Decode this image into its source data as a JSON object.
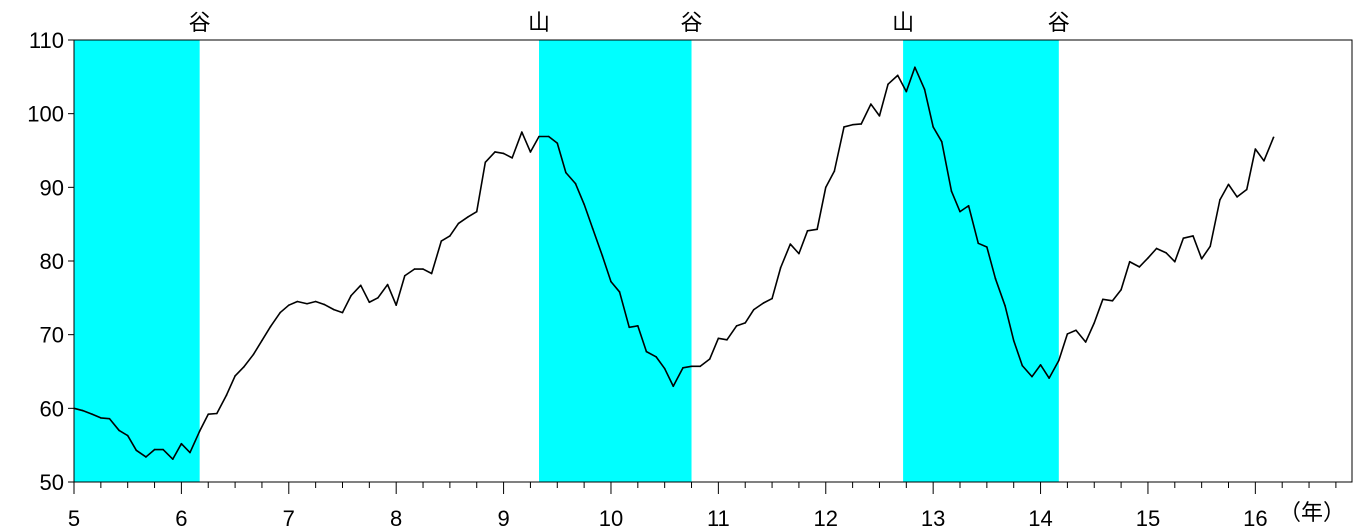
{
  "chart_data": {
    "type": "line",
    "title": "",
    "xlabel": "（年）",
    "ylabel": "",
    "ylim": [
      50,
      110
    ],
    "xlim": [
      5,
      16.9
    ],
    "yticks": [
      50,
      60,
      70,
      80,
      90,
      100,
      110
    ],
    "xticks": [
      5,
      6,
      7,
      8,
      9,
      10,
      11,
      12,
      13,
      14,
      15,
      16
    ],
    "grid": false,
    "colors": {
      "shade": "#00ffff",
      "line": "#000000",
      "axis": "#000000"
    },
    "shaded_periods": [
      {
        "start": 5.0,
        "end": 6.17
      },
      {
        "start": 9.33,
        "end": 10.75
      },
      {
        "start": 12.72,
        "end": 14.17
      }
    ],
    "phase_labels": [
      {
        "label": "谷",
        "x": 6.17
      },
      {
        "label": "山",
        "x": 9.33
      },
      {
        "label": "谷",
        "x": 10.75
      },
      {
        "label": "山",
        "x": 12.72
      },
      {
        "label": "谷",
        "x": 14.17
      }
    ],
    "series": [
      {
        "x": [
          5.0,
          5.08,
          5.17,
          5.25,
          5.33,
          5.42,
          5.5,
          5.58,
          5.67,
          5.75,
          5.83,
          5.92,
          6.0,
          6.08,
          6.17,
          6.25,
          6.33,
          6.42,
          6.5,
          6.58,
          6.67,
          6.75,
          6.83,
          6.92,
          7.0,
          7.08,
          7.17,
          7.25,
          7.33,
          7.42,
          7.5,
          7.58,
          7.67,
          7.75,
          7.83,
          7.92,
          8.0,
          8.08,
          8.17,
          8.25,
          8.33,
          8.42,
          8.5,
          8.58,
          8.67,
          8.75,
          8.83,
          8.92,
          9.0,
          9.08,
          9.17,
          9.25,
          9.33,
          9.42,
          9.5,
          9.58,
          9.67,
          9.75,
          9.83,
          9.92,
          10.0,
          10.08,
          10.17,
          10.25,
          10.33,
          10.42,
          10.5,
          10.58,
          10.67,
          10.75,
          10.83,
          10.92,
          11.0,
          11.08,
          11.17,
          11.25,
          11.33,
          11.42,
          11.5,
          11.58,
          11.67,
          11.75,
          11.83,
          11.92,
          12.0,
          12.08,
          12.17,
          12.25,
          12.33,
          12.42,
          12.5,
          12.58,
          12.67,
          12.75,
          12.83,
          12.92,
          13.0,
          13.08,
          13.17,
          13.25,
          13.33,
          13.42,
          13.5,
          13.58,
          13.67,
          13.75,
          13.83,
          13.92,
          14.0,
          14.08,
          14.17,
          14.25,
          14.33,
          14.42,
          14.5,
          14.58,
          14.67,
          14.75,
          14.83,
          14.92,
          15.0,
          15.08,
          15.17,
          15.25,
          15.33,
          15.42,
          15.5,
          15.58,
          15.67,
          15.75,
          15.83,
          15.92,
          16.0,
          16.08,
          16.17
        ],
        "values": [
          60.0,
          59.7,
          59.2,
          58.7,
          58.6,
          57.0,
          56.3,
          54.3,
          53.4,
          54.4,
          54.4,
          53.1,
          55.2,
          54.0,
          56.9,
          59.2,
          59.3,
          61.8,
          64.4,
          65.6,
          67.3,
          69.2,
          71.1,
          73.0,
          74.0,
          74.5,
          74.2,
          74.5,
          74.1,
          73.4,
          73.0,
          75.3,
          76.7,
          74.4,
          75.0,
          76.8,
          74.0,
          78.0,
          78.9,
          78.9,
          78.3,
          82.7,
          83.4,
          85.1,
          86.0,
          86.7,
          93.4,
          94.8,
          94.6,
          94.0,
          97.5,
          94.8,
          96.9,
          96.9,
          96.0,
          92.0,
          90.5,
          87.7,
          84.4,
          80.7,
          77.2,
          75.8,
          71.0,
          71.2,
          67.7,
          67.0,
          65.4,
          63.0,
          65.5,
          65.7,
          65.7,
          66.7,
          69.5,
          69.3,
          71.2,
          71.6,
          73.4,
          74.3,
          74.9,
          79.1,
          82.3,
          81.0,
          84.1,
          84.3,
          90.0,
          92.2,
          98.2,
          98.5,
          98.6,
          101.3,
          99.7,
          104.0,
          105.2,
          103.0,
          106.3,
          103.3,
          98.2,
          96.2,
          89.5,
          86.7,
          87.5,
          82.4,
          81.9,
          77.6,
          73.9,
          69.2,
          65.8,
          64.3,
          65.9,
          64.1,
          66.5,
          70.1,
          70.6,
          69.0,
          71.6,
          74.8,
          74.6,
          76.1,
          79.9,
          79.2,
          80.4,
          81.7,
          81.1,
          79.9,
          83.1,
          83.4,
          80.3,
          82.0,
          88.3,
          90.4,
          88.7,
          89.7,
          95.2,
          93.6,
          96.8
        ]
      }
    ]
  }
}
